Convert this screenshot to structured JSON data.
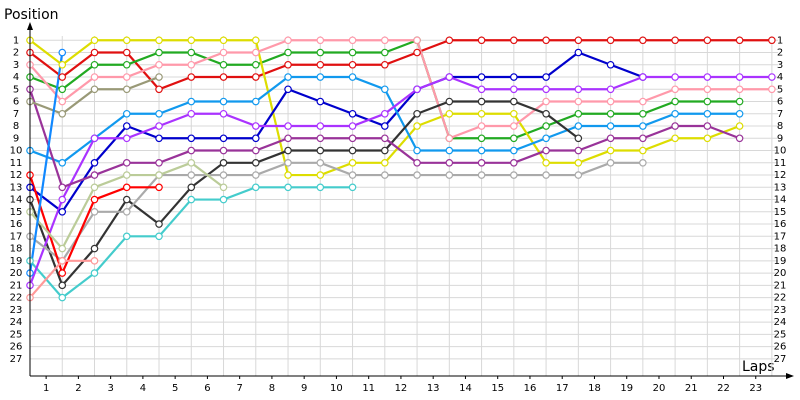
{
  "chart_data": {
    "type": "line",
    "y_axis_label": "Position",
    "x_axis_label": "Laps",
    "x": [
      0,
      1,
      2,
      3,
      4,
      5,
      6,
      7,
      8,
      9,
      10,
      11,
      12,
      13,
      14,
      15,
      16,
      17,
      18,
      19,
      20,
      21,
      22,
      23
    ],
    "xlim": [
      0,
      23.5
    ],
    "ylim": [
      0,
      28.4
    ],
    "y_reversed": true,
    "grid": true,
    "xticks": [
      {
        "value": 0.5,
        "label": "1"
      },
      {
        "value": 1.5,
        "label": "2"
      },
      {
        "value": 2.5,
        "label": "3"
      },
      {
        "value": 3.5,
        "label": "4"
      },
      {
        "value": 4.5,
        "label": "5"
      },
      {
        "value": 5.5,
        "label": "6"
      },
      {
        "value": 6.5,
        "label": "7"
      },
      {
        "value": 7.5,
        "label": "8"
      },
      {
        "value": 8.5,
        "label": "9"
      },
      {
        "value": 9.5,
        "label": "10"
      },
      {
        "value": 10.5,
        "label": "11"
      },
      {
        "value": 11.5,
        "label": "12"
      },
      {
        "value": 12.5,
        "label": "13"
      },
      {
        "value": 13.5,
        "label": "14"
      },
      {
        "value": 14.5,
        "label": "15"
      },
      {
        "value": 15.5,
        "label": "16"
      },
      {
        "value": 16.5,
        "label": "17"
      },
      {
        "value": 17.5,
        "label": "18"
      },
      {
        "value": 18.5,
        "label": "19"
      },
      {
        "value": 19.5,
        "label": "20"
      },
      {
        "value": 20.5,
        "label": "21"
      },
      {
        "value": 21.5,
        "label": "22"
      },
      {
        "value": 22.5,
        "label": "23"
      }
    ],
    "yticks": [
      1,
      2,
      3,
      4,
      5,
      6,
      7,
      8,
      9,
      10,
      11,
      12,
      13,
      14,
      15,
      16,
      17,
      18,
      19,
      20,
      21,
      22,
      23,
      24,
      25,
      26,
      27
    ],
    "series": [
      {
        "color": "#e01010",
        "values": [
          2,
          4,
          2,
          2,
          5,
          4,
          4,
          4,
          3,
          3,
          3,
          3,
          2,
          1,
          1,
          1,
          1,
          1,
          1,
          1,
          1,
          1,
          1,
          1
        ]
      },
      {
        "color": "#22aa22",
        "values": [
          4,
          5,
          3,
          3,
          2,
          2,
          3,
          3,
          2,
          2,
          2,
          2,
          1,
          9,
          9,
          9,
          8,
          7,
          7,
          7,
          6,
          6,
          6,
          null
        ]
      },
      {
        "color": "#dddd00",
        "values": [
          1,
          3,
          1,
          1,
          1,
          1,
          1,
          1,
          12,
          12,
          11,
          11,
          8,
          7,
          7,
          7,
          11,
          11,
          10,
          10,
          9,
          9,
          8,
          null
        ]
      },
      {
        "color": "#ff99aa",
        "values": [
          3,
          6,
          4,
          4,
          3,
          3,
          2,
          2,
          1,
          1,
          1,
          1,
          1,
          9,
          8,
          8,
          6,
          6,
          6,
          6,
          5,
          5,
          5,
          5
        ]
      },
      {
        "color": "#0000cc",
        "values": [
          13,
          15,
          11,
          8,
          9,
          9,
          9,
          9,
          5,
          6,
          7,
          8,
          5,
          4,
          4,
          4,
          4,
          2,
          3,
          4,
          null,
          null,
          null,
          null
        ]
      },
      {
        "color": "#1199ee",
        "values": [
          10,
          11,
          9,
          7,
          7,
          6,
          6,
          6,
          4,
          4,
          4,
          5,
          10,
          10,
          10,
          10,
          9,
          8,
          8,
          8,
          7,
          7,
          7,
          null
        ]
      },
      {
        "color": "#44cccc",
        "values": [
          19,
          22,
          20,
          17,
          17,
          14,
          14,
          13,
          13,
          13,
          13,
          null,
          null,
          null,
          null,
          null,
          null,
          null,
          null,
          null,
          null,
          null,
          null,
          null
        ]
      },
      {
        "color": "#333333",
        "values": [
          14,
          21,
          18,
          14,
          16,
          13,
          11,
          11,
          10,
          10,
          10,
          10,
          7,
          6,
          6,
          6,
          7,
          9,
          null,
          null,
          null,
          null,
          null,
          null
        ]
      },
      {
        "color": "#aa33ff",
        "values": [
          21,
          14,
          9,
          9,
          8,
          7,
          7,
          8,
          8,
          8,
          8,
          7,
          5,
          4,
          5,
          5,
          5,
          5,
          5,
          4,
          4,
          4,
          4,
          4
        ]
      },
      {
        "color": "#993399",
        "values": [
          5,
          13,
          12,
          11,
          11,
          10,
          10,
          10,
          9,
          9,
          9,
          9,
          11,
          11,
          11,
          11,
          10,
          10,
          9,
          9,
          8,
          8,
          9,
          null
        ]
      },
      {
        "color": "#aaaaaa",
        "values": [
          17,
          19,
          15,
          15,
          12,
          12,
          12,
          12,
          11,
          11,
          12,
          12,
          12,
          12,
          12,
          12,
          12,
          12,
          11,
          11,
          null,
          null,
          null,
          null
        ]
      },
      {
        "color": "#999977",
        "values": [
          6,
          7,
          5,
          5,
          4,
          null,
          null,
          null,
          null,
          null,
          null,
          null,
          null,
          null,
          null,
          null,
          null,
          null,
          null,
          null,
          null,
          null,
          null,
          null
        ]
      },
      {
        "color": "#ff0000",
        "values": [
          12,
          20,
          14,
          13,
          13,
          null,
          null,
          null,
          null,
          null,
          null,
          null,
          null,
          null,
          null,
          null,
          null,
          null,
          null,
          null,
          null,
          null,
          null,
          null
        ]
      },
      {
        "color": "#ff9999",
        "values": [
          22,
          19,
          19,
          null,
          null,
          null,
          null,
          null,
          null,
          null,
          null,
          null,
          null,
          null,
          null,
          null,
          null,
          null,
          null,
          null,
          null,
          null,
          null,
          null
        ]
      },
      {
        "color": "#bbcc99",
        "values": [
          15,
          18,
          13,
          12,
          12,
          11,
          13,
          null,
          null,
          null,
          null,
          null,
          null,
          null,
          null,
          null,
          null,
          null,
          null,
          null,
          null,
          null,
          null,
          null
        ]
      },
      {
        "color": "#1188ff",
        "values": [
          20,
          2,
          null,
          null,
          null,
          null,
          null,
          null,
          null,
          null,
          null,
          null,
          null,
          null,
          null,
          null,
          null,
          null,
          null,
          null,
          null,
          null,
          null,
          null
        ]
      }
    ]
  }
}
